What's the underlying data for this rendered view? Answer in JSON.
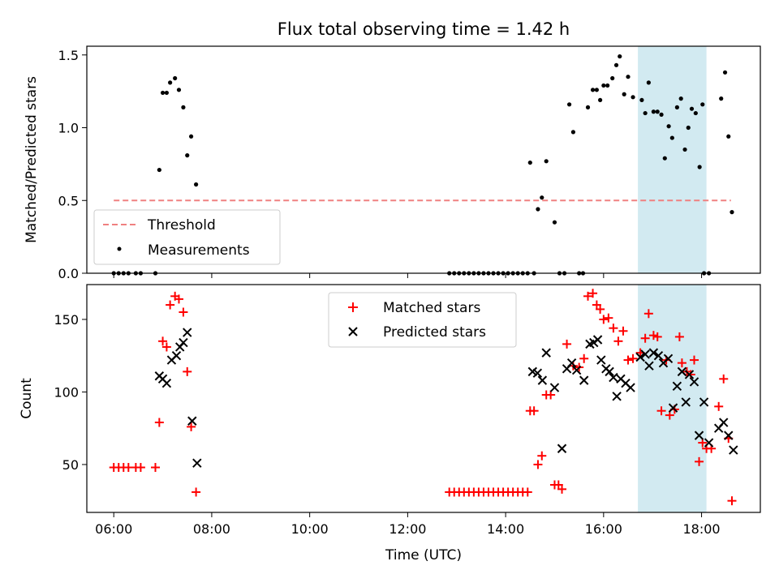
{
  "chart_data": [
    {
      "type": "scatter",
      "title": "Flux total observing time = 1.42 h",
      "ylabel": "Matched/Predicted stars",
      "xlim": [
        5.45,
        19.2
      ],
      "ylim": [
        0,
        1.56
      ],
      "yticks": [
        {
          "value": 0.0,
          "label": "0.0"
        },
        {
          "value": 0.5,
          "label": "0.5"
        },
        {
          "value": 1.0,
          "label": "1.0"
        },
        {
          "value": 1.5,
          "label": "1.5"
        }
      ],
      "xticks": [
        6,
        8,
        10,
        12,
        14,
        16,
        18
      ],
      "shaded_region": {
        "x": [
          16.7,
          18.1
        ],
        "color": "#add8e6"
      },
      "threshold": {
        "name": "Threshold",
        "value": 0.5,
        "x": [
          6.0,
          18.6
        ],
        "color": "#f08080"
      },
      "series": [
        {
          "name": "Measurements",
          "color": "#000000",
          "marker": "dot",
          "points": [
            [
              6.0,
              0
            ],
            [
              6.1,
              0
            ],
            [
              6.2,
              0
            ],
            [
              6.3,
              0
            ],
            [
              6.45,
              0
            ],
            [
              6.55,
              0
            ],
            [
              6.85,
              0
            ],
            [
              6.93,
              0.71
            ],
            [
              7.0,
              1.24
            ],
            [
              7.08,
              1.24
            ],
            [
              7.15,
              1.31
            ],
            [
              7.25,
              1.34
            ],
            [
              7.33,
              1.26
            ],
            [
              7.42,
              1.14
            ],
            [
              7.5,
              0.81
            ],
            [
              7.58,
              0.94
            ],
            [
              7.68,
              0.61
            ],
            [
              12.85,
              0
            ],
            [
              12.95,
              0
            ],
            [
              13.05,
              0
            ],
            [
              13.15,
              0
            ],
            [
              13.25,
              0
            ],
            [
              13.35,
              0
            ],
            [
              13.45,
              0
            ],
            [
              13.55,
              0
            ],
            [
              13.65,
              0
            ],
            [
              13.75,
              0
            ],
            [
              13.85,
              0
            ],
            [
              13.95,
              0
            ],
            [
              14.05,
              0
            ],
            [
              14.15,
              0
            ],
            [
              14.25,
              0
            ],
            [
              14.35,
              0
            ],
            [
              14.45,
              0
            ],
            [
              14.5,
              0.76
            ],
            [
              14.58,
              0
            ],
            [
              14.66,
              0.44
            ],
            [
              14.74,
              0.52
            ],
            [
              14.83,
              0.77
            ],
            [
              15.0,
              0.35
            ],
            [
              15.1,
              0
            ],
            [
              15.2,
              0
            ],
            [
              15.3,
              1.16
            ],
            [
              15.38,
              0.97
            ],
            [
              15.5,
              0
            ],
            [
              15.58,
              0
            ],
            [
              15.68,
              1.14
            ],
            [
              15.78,
              1.26
            ],
            [
              15.86,
              1.26
            ],
            [
              15.93,
              1.19
            ],
            [
              16.0,
              1.29
            ],
            [
              16.08,
              1.29
            ],
            [
              16.18,
              1.34
            ],
            [
              16.26,
              1.43
            ],
            [
              16.33,
              1.49
            ],
            [
              16.42,
              1.23
            ],
            [
              16.5,
              1.35
            ],
            [
              16.6,
              1.21
            ],
            [
              16.78,
              1.19
            ],
            [
              16.85,
              1.1
            ],
            [
              16.92,
              1.31
            ],
            [
              17.02,
              1.11
            ],
            [
              17.1,
              1.11
            ],
            [
              17.18,
              1.09
            ],
            [
              17.25,
              0.79
            ],
            [
              17.33,
              1.01
            ],
            [
              17.4,
              0.93
            ],
            [
              17.5,
              1.14
            ],
            [
              17.58,
              1.2
            ],
            [
              17.66,
              0.85
            ],
            [
              17.73,
              1.0
            ],
            [
              17.8,
              1.13
            ],
            [
              17.88,
              1.1
            ],
            [
              17.96,
              0.73
            ],
            [
              18.02,
              1.16
            ],
            [
              18.05,
              0
            ],
            [
              18.15,
              0
            ],
            [
              18.4,
              1.2
            ],
            [
              18.48,
              1.38
            ],
            [
              18.55,
              0.94
            ],
            [
              18.62,
              0.42
            ]
          ]
        }
      ],
      "legend": {
        "placement": "lower-left",
        "entries": [
          "Threshold",
          "Measurements"
        ]
      }
    },
    {
      "type": "scatter",
      "xlabel": "Time (UTC)",
      "ylabel": "Count",
      "xlim": [
        5.45,
        19.2
      ],
      "ylim": [
        17,
        174
      ],
      "yticks": [
        {
          "value": 50,
          "label": "50"
        },
        {
          "value": 100,
          "label": "100"
        },
        {
          "value": 150,
          "label": "150"
        }
      ],
      "xticks": [
        {
          "value": 6,
          "label": "06:00"
        },
        {
          "value": 8,
          "label": "08:00"
        },
        {
          "value": 10,
          "label": "10:00"
        },
        {
          "value": 12,
          "label": "12:00"
        },
        {
          "value": 14,
          "label": "14:00"
        },
        {
          "value": 16,
          "label": "16:00"
        },
        {
          "value": 18,
          "label": "18:00"
        }
      ],
      "shaded_region": {
        "x": [
          16.7,
          18.1
        ],
        "color": "#add8e6"
      },
      "series": [
        {
          "name": "Matched stars",
          "color": "#ff0000",
          "marker": "plus",
          "points": [
            [
              6.0,
              48
            ],
            [
              6.1,
              48
            ],
            [
              6.2,
              48
            ],
            [
              6.3,
              48
            ],
            [
              6.45,
              48
            ],
            [
              6.55,
              48
            ],
            [
              6.85,
              48
            ],
            [
              6.93,
              79
            ],
            [
              7.0,
              135
            ],
            [
              7.08,
              131
            ],
            [
              7.15,
              160
            ],
            [
              7.25,
              166
            ],
            [
              7.33,
              164
            ],
            [
              7.42,
              155
            ],
            [
              7.5,
              114
            ],
            [
              7.58,
              76
            ],
            [
              7.68,
              31
            ],
            [
              12.85,
              31
            ],
            [
              12.95,
              31
            ],
            [
              13.05,
              31
            ],
            [
              13.15,
              31
            ],
            [
              13.25,
              31
            ],
            [
              13.35,
              31
            ],
            [
              13.45,
              31
            ],
            [
              13.55,
              31
            ],
            [
              13.65,
              31
            ],
            [
              13.75,
              31
            ],
            [
              13.85,
              31
            ],
            [
              13.95,
              31
            ],
            [
              14.05,
              31
            ],
            [
              14.15,
              31
            ],
            [
              14.25,
              31
            ],
            [
              14.35,
              31
            ],
            [
              14.45,
              31
            ],
            [
              14.5,
              87
            ],
            [
              14.58,
              87
            ],
            [
              14.66,
              50
            ],
            [
              14.74,
              56
            ],
            [
              14.83,
              98
            ],
            [
              14.92,
              98
            ],
            [
              15.0,
              36
            ],
            [
              15.08,
              36
            ],
            [
              15.15,
              33
            ],
            [
              15.25,
              133
            ],
            [
              15.38,
              118
            ],
            [
              15.5,
              117
            ],
            [
              15.6,
              123
            ],
            [
              15.68,
              166
            ],
            [
              15.78,
              168
            ],
            [
              15.86,
              160
            ],
            [
              15.93,
              157
            ],
            [
              16.0,
              150
            ],
            [
              16.1,
              151
            ],
            [
              16.2,
              144
            ],
            [
              16.3,
              135
            ],
            [
              16.4,
              142
            ],
            [
              16.5,
              122
            ],
            [
              16.6,
              123
            ],
            [
              16.75,
              127
            ],
            [
              16.85,
              137
            ],
            [
              16.92,
              154
            ],
            [
              17.02,
              139
            ],
            [
              17.1,
              138
            ],
            [
              17.18,
              87
            ],
            [
              17.28,
              122
            ],
            [
              17.35,
              84
            ],
            [
              17.45,
              88
            ],
            [
              17.55,
              138
            ],
            [
              17.6,
              120
            ],
            [
              17.7,
              114
            ],
            [
              17.78,
              112
            ],
            [
              17.85,
              122
            ],
            [
              17.95,
              52
            ],
            [
              18.02,
              65
            ],
            [
              18.1,
              61
            ],
            [
              18.2,
              61
            ],
            [
              18.35,
              90
            ],
            [
              18.45,
              109
            ],
            [
              18.55,
              68
            ],
            [
              18.62,
              25
            ]
          ]
        },
        {
          "name": "Predicted stars",
          "color": "#000000",
          "marker": "x",
          "points": [
            [
              6.93,
              111
            ],
            [
              7.0,
              109
            ],
            [
              7.08,
              106
            ],
            [
              7.18,
              122
            ],
            [
              7.28,
              125
            ],
            [
              7.35,
              131
            ],
            [
              7.42,
              134
            ],
            [
              7.5,
              141
            ],
            [
              7.6,
              80
            ],
            [
              7.7,
              51
            ],
            [
              14.55,
              114
            ],
            [
              14.65,
              113
            ],
            [
              14.75,
              108
            ],
            [
              14.83,
              127
            ],
            [
              15.0,
              103
            ],
            [
              15.15,
              61
            ],
            [
              15.25,
              116
            ],
            [
              15.35,
              120
            ],
            [
              15.45,
              115
            ],
            [
              15.6,
              108
            ],
            [
              15.72,
              133
            ],
            [
              15.8,
              134
            ],
            [
              15.88,
              136
            ],
            [
              15.95,
              122
            ],
            [
              16.05,
              116
            ],
            [
              16.12,
              114
            ],
            [
              16.2,
              110
            ],
            [
              16.27,
              97
            ],
            [
              16.35,
              109
            ],
            [
              16.45,
              106
            ],
            [
              16.55,
              103
            ],
            [
              16.75,
              124
            ],
            [
              16.85,
              126
            ],
            [
              16.93,
              118
            ],
            [
              17.02,
              127
            ],
            [
              17.12,
              125
            ],
            [
              17.22,
              120
            ],
            [
              17.32,
              123
            ],
            [
              17.42,
              89
            ],
            [
              17.5,
              104
            ],
            [
              17.6,
              114
            ],
            [
              17.68,
              93
            ],
            [
              17.75,
              112
            ],
            [
              17.85,
              107
            ],
            [
              17.95,
              70
            ],
            [
              18.05,
              93
            ],
            [
              18.15,
              65
            ],
            [
              18.35,
              75
            ],
            [
              18.45,
              79
            ],
            [
              18.55,
              70
            ],
            [
              18.65,
              60
            ]
          ]
        }
      ],
      "legend": {
        "placement": "upper-center",
        "entries": [
          "Matched stars",
          "Predicted stars"
        ]
      }
    }
  ]
}
